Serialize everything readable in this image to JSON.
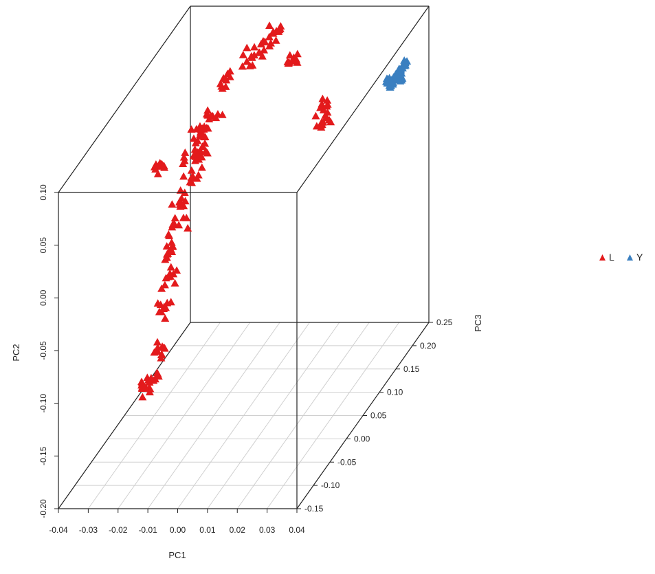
{
  "chart_data": {
    "type": "scatter",
    "projection": "3d",
    "xlabel": "PC1",
    "ylabel": "PC2",
    "zlabel": "PC3",
    "xlim": [
      -0.04,
      0.04
    ],
    "ylim": [
      -0.2,
      0.1
    ],
    "zlim": [
      -0.15,
      0.25
    ],
    "x_ticks": [
      "-0.04",
      "-0.03",
      "-0.02",
      "-0.01",
      "0.00",
      "0.01",
      "0.02",
      "0.03",
      "0.04"
    ],
    "y_ticks": [
      "-0.20",
      "-0.15",
      "-0.10",
      "-0.05",
      "0.00",
      "0.05",
      "0.10"
    ],
    "z_ticks": [
      "-0.15",
      "-0.10",
      "-0.05",
      "0.00",
      "0.05",
      "0.10",
      "0.15",
      "0.20",
      "0.25"
    ],
    "legend_position": "right",
    "grid": "bottom plane",
    "series": [
      {
        "name": "L",
        "color": "#e31a1c",
        "marker": "triangle",
        "description": "broad elongated cluster near the front-left of the cube",
        "points": [
          [
            -0.02,
            0.047,
            0.1
          ],
          [
            -0.018,
            0.052,
            0.08
          ],
          [
            -0.016,
            0.044,
            0.06
          ],
          [
            -0.019,
            0.038,
            0.07
          ],
          [
            -0.017,
            0.058,
            0.11
          ],
          [
            -0.015,
            0.035,
            0.03
          ],
          [
            -0.016,
            0.025,
            0.0
          ],
          [
            -0.014,
            0.012,
            -0.02
          ],
          [
            -0.013,
            0.0,
            -0.05
          ],
          [
            -0.012,
            -0.015,
            -0.07
          ],
          [
            -0.011,
            -0.035,
            -0.1
          ],
          [
            -0.01,
            -0.06,
            -0.12
          ],
          [
            -0.01,
            -0.08,
            -0.14
          ],
          [
            -0.013,
            -0.09,
            -0.14
          ],
          [
            -0.018,
            0.07,
            0.16
          ],
          [
            -0.014,
            0.075,
            0.2
          ],
          [
            -0.012,
            0.072,
            0.22
          ],
          [
            -0.01,
            0.085,
            0.23
          ],
          [
            -0.025,
            0.05,
            0.02
          ],
          [
            -0.002,
            0.065,
            0.22
          ],
          [
            0.012,
            0.035,
            0.18
          ],
          [
            0.014,
            0.03,
            0.16
          ]
        ]
      },
      {
        "name": "Y",
        "color": "#3a7fc0",
        "marker": "triangle",
        "description": "tight cluster near the right side of the cube",
        "points": [
          [
            0.034,
            0.055,
            0.2
          ],
          [
            0.035,
            0.057,
            0.21
          ],
          [
            0.036,
            0.054,
            0.2
          ],
          [
            0.034,
            0.053,
            0.19
          ],
          [
            0.035,
            0.059,
            0.22
          ],
          [
            0.033,
            0.056,
            0.19
          ]
        ]
      }
    ]
  }
}
